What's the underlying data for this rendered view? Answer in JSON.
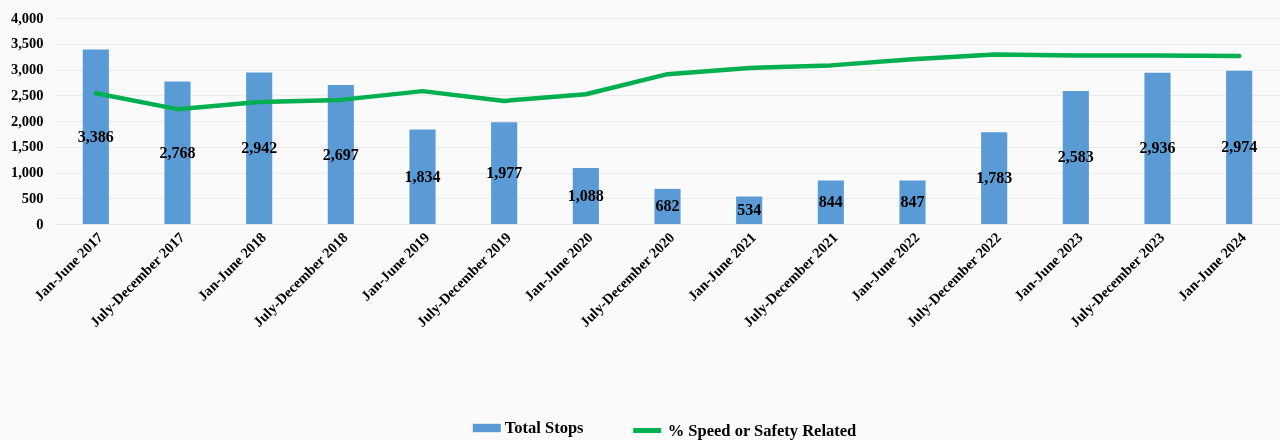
{
  "chart_data": {
    "type": "bar",
    "categories": [
      "Jan-June 2017",
      "July-December 2017",
      "Jan-June 2018",
      "July-December 2018",
      "Jan-June 2019",
      "July-December 2019",
      "Jan-June 2020",
      "July-December 2020",
      "Jan-June 2021",
      "July-December 2021",
      "Jan-June 2022",
      "July-December 2022",
      "Jan-June 2023",
      "July-December 2023",
      "Jan-June 2024"
    ],
    "series": [
      {
        "name": "Total Stops",
        "color": "#5b9bd5",
        "values": [
          3386,
          2768,
          2942,
          2697,
          1834,
          1977,
          1088,
          682,
          534,
          844,
          847,
          1783,
          2583,
          2936,
          2974
        ],
        "value_labels": [
          "3,386",
          "2,768",
          "2,942",
          "2,697",
          "1,834",
          "1,977",
          "1,088",
          "682",
          "534",
          "844",
          "847",
          "1,783",
          "2,583",
          "2,936",
          "2,974"
        ]
      },
      {
        "name": "% Speed or Safety Related",
        "type": "line",
        "color": "#00b050",
        "values": [
          2540,
          2230,
          2370,
          2410,
          2580,
          2390,
          2520,
          2910,
          3030,
          3080,
          3200,
          3290,
          3270,
          3270,
          3260
        ]
      }
    ],
    "ylim": [
      0,
      4000
    ],
    "yticks": [
      0,
      500,
      {
        "value": 1000,
        "label": "1,000"
      },
      {
        "value": 1500,
        "label": "1,500"
      },
      {
        "value": 2000,
        "label": "2,000"
      },
      {
        "value": 2500,
        "label": "2,500"
      },
      {
        "value": 3000,
        "label": "3,000"
      },
      {
        "value": 3500,
        "label": "3,500"
      },
      {
        "value": 4000,
        "label": "4,000"
      }
    ],
    "grid": "y",
    "legend": "bottom"
  }
}
